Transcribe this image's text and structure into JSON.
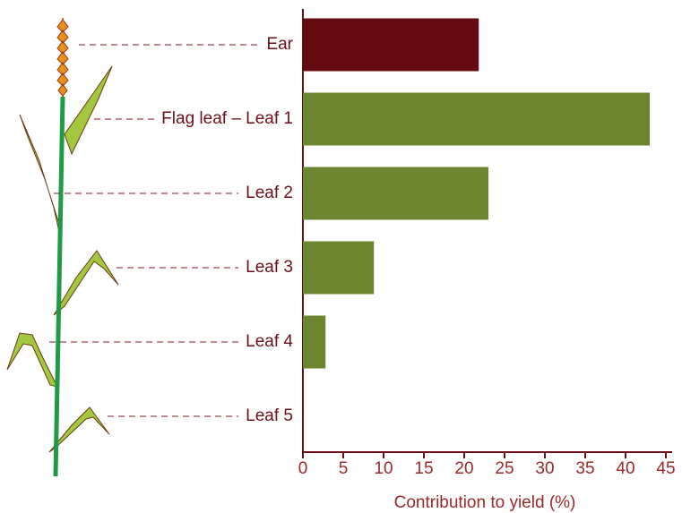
{
  "chart_data": {
    "type": "barh",
    "x_label": "Contribution to yield (%)",
    "categories": [
      "Ear",
      "Flag leaf – Leaf 1",
      "Leaf 2",
      "Leaf 3",
      "Leaf 4",
      "Leaf 5"
    ],
    "values": [
      21.8,
      43,
      23,
      8.8,
      2.8,
      0
    ],
    "colors": [
      "#650a10",
      "#6e8530",
      "#6e8530",
      "#6e8530",
      "#6e8530",
      "#6e8530"
    ],
    "xlim": [
      0,
      45
    ],
    "xticks": [
      0,
      5,
      10,
      15,
      20,
      25,
      30,
      35,
      40,
      45
    ]
  }
}
